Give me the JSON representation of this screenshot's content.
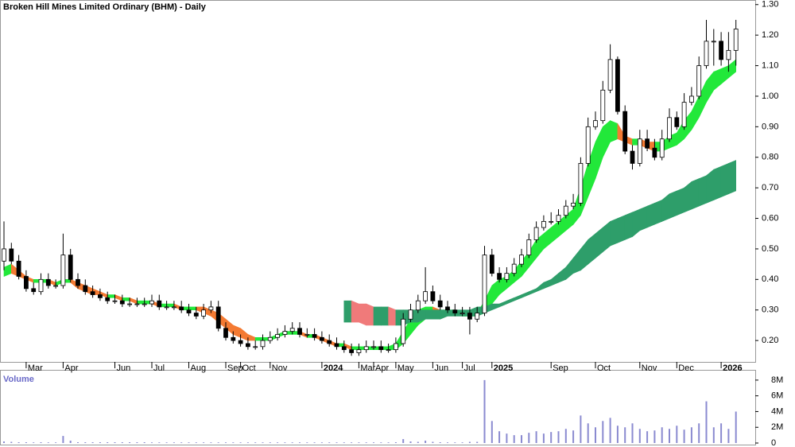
{
  "chart_data": {
    "type": "candlestick",
    "title": "Broken Hill Mines Limited Ordinary (BHM) - Daily",
    "categories": [
      null,
      null,
      null,
      "Mar",
      null,
      null,
      null,
      null,
      "Apr",
      null,
      null,
      null,
      null,
      null,
      null,
      "Jun",
      null,
      null,
      null,
      null,
      "Jul",
      null,
      null,
      null,
      null,
      "Aug",
      null,
      null,
      null,
      null,
      "Sep",
      null,
      "Oct",
      null,
      null,
      null,
      "Nov",
      null,
      null,
      null,
      null,
      null,
      null,
      "2024",
      null,
      null,
      null,
      null,
      "Mar",
      null,
      "Apr",
      null,
      null,
      "May",
      null,
      null,
      null,
      null,
      "Jun",
      null,
      null,
      null,
      "Jul",
      null,
      null,
      null,
      "2025",
      null,
      null,
      null,
      null,
      null,
      null,
      null,
      "Sep",
      null,
      null,
      null,
      null,
      null,
      "Oct",
      null,
      null,
      null,
      null,
      null,
      "Nov",
      null,
      null,
      null,
      null,
      "Dec",
      null,
      null,
      null,
      null,
      null,
      "2026",
      null,
      null
    ],
    "open": [
      0.46,
      0.5,
      0.46,
      0.41,
      0.37,
      0.36,
      0.4,
      0.38,
      0.38,
      0.48,
      0.4,
      0.38,
      0.36,
      0.35,
      0.34,
      0.33,
      0.33,
      0.32,
      0.32,
      0.32,
      0.32,
      0.33,
      0.31,
      0.31,
      0.31,
      0.3,
      0.29,
      0.28,
      0.3,
      0.31,
      0.24,
      0.21,
      0.2,
      0.19,
      0.18,
      0.18,
      0.2,
      0.21,
      0.22,
      0.23,
      0.24,
      0.22,
      0.22,
      0.21,
      0.2,
      0.19,
      0.18,
      0.17,
      0.16,
      0.17,
      0.18,
      0.18,
      0.17,
      0.17,
      0.19,
      0.27,
      0.3,
      0.33,
      0.36,
      0.33,
      0.31,
      0.3,
      0.29,
      0.29,
      0.27,
      0.29,
      0.48,
      0.42,
      0.4,
      0.42,
      0.45,
      0.48,
      0.53,
      0.57,
      0.59,
      0.59,
      0.61,
      0.64,
      0.65,
      0.78,
      0.9,
      0.92,
      1.02,
      1.12,
      0.95,
      0.82,
      0.78,
      0.86,
      0.83,
      0.8,
      0.86,
      0.93,
      0.9,
      0.98,
      1.0,
      1.1,
      1.18,
      1.18,
      1.12,
      1.15
    ],
    "high": [
      0.59,
      0.52,
      0.48,
      0.43,
      0.39,
      0.42,
      0.42,
      0.4,
      0.55,
      0.5,
      0.42,
      0.4,
      0.38,
      0.37,
      0.36,
      0.35,
      0.35,
      0.34,
      0.34,
      0.34,
      0.35,
      0.35,
      0.33,
      0.33,
      0.33,
      0.32,
      0.31,
      0.32,
      0.33,
      0.33,
      0.26,
      0.23,
      0.22,
      0.21,
      0.2,
      0.22,
      0.23,
      0.24,
      0.25,
      0.26,
      0.26,
      0.24,
      0.24,
      0.23,
      0.22,
      0.21,
      0.2,
      0.19,
      0.19,
      0.2,
      0.2,
      0.2,
      0.19,
      0.21,
      0.29,
      0.32,
      0.35,
      0.44,
      0.38,
      0.35,
      0.33,
      0.32,
      0.31,
      0.31,
      0.31,
      0.51,
      0.5,
      0.44,
      0.44,
      0.47,
      0.5,
      0.55,
      0.59,
      0.61,
      0.62,
      0.63,
      0.66,
      0.68,
      0.8,
      0.93,
      0.95,
      1.05,
      1.17,
      1.13,
      0.97,
      0.84,
      0.89,
      0.89,
      0.86,
      0.89,
      0.96,
      0.95,
      1.01,
      1.03,
      1.13,
      1.25,
      1.22,
      1.21,
      1.21,
      1.25
    ],
    "low": [
      0.43,
      0.45,
      0.4,
      0.36,
      0.35,
      0.35,
      0.37,
      0.37,
      0.37,
      0.39,
      0.37,
      0.35,
      0.34,
      0.33,
      0.32,
      0.32,
      0.31,
      0.31,
      0.31,
      0.31,
      0.31,
      0.3,
      0.3,
      0.3,
      0.29,
      0.28,
      0.27,
      0.27,
      0.29,
      0.23,
      0.2,
      0.19,
      0.18,
      0.17,
      0.17,
      0.17,
      0.19,
      0.2,
      0.21,
      0.22,
      0.21,
      0.21,
      0.2,
      0.19,
      0.18,
      0.17,
      0.16,
      0.15,
      0.15,
      0.16,
      0.17,
      0.16,
      0.16,
      0.16,
      0.18,
      0.26,
      0.29,
      0.32,
      0.32,
      0.3,
      0.29,
      0.28,
      0.28,
      0.22,
      0.26,
      0.28,
      0.41,
      0.39,
      0.39,
      0.41,
      0.44,
      0.47,
      0.52,
      0.56,
      0.58,
      0.58,
      0.6,
      0.63,
      0.64,
      0.77,
      0.89,
      0.91,
      1.01,
      0.94,
      0.81,
      0.76,
      0.77,
      0.82,
      0.79,
      0.79,
      0.85,
      0.89,
      0.89,
      0.97,
      0.99,
      1.09,
      1.1,
      1.1,
      1.08,
      1.1
    ],
    "close": [
      0.5,
      0.46,
      0.41,
      0.37,
      0.36,
      0.4,
      0.38,
      0.38,
      0.48,
      0.4,
      0.38,
      0.36,
      0.35,
      0.34,
      0.33,
      0.33,
      0.32,
      0.32,
      0.32,
      0.32,
      0.33,
      0.31,
      0.31,
      0.31,
      0.3,
      0.29,
      0.28,
      0.3,
      0.31,
      0.24,
      0.21,
      0.2,
      0.19,
      0.18,
      0.18,
      0.2,
      0.21,
      0.22,
      0.23,
      0.24,
      0.22,
      0.22,
      0.21,
      0.2,
      0.19,
      0.18,
      0.17,
      0.16,
      0.17,
      0.18,
      0.18,
      0.17,
      0.17,
      0.19,
      0.27,
      0.3,
      0.33,
      0.36,
      0.33,
      0.31,
      0.3,
      0.29,
      0.29,
      0.27,
      0.29,
      0.48,
      0.42,
      0.4,
      0.42,
      0.45,
      0.48,
      0.53,
      0.57,
      0.59,
      0.59,
      0.61,
      0.64,
      0.65,
      0.78,
      0.9,
      0.92,
      1.02,
      1.12,
      0.95,
      0.82,
      0.78,
      0.86,
      0.83,
      0.8,
      0.86,
      0.93,
      0.9,
      0.98,
      1.0,
      1.1,
      1.18,
      1.18,
      1.12,
      1.15,
      1.22
    ],
    "up_color": "#ffffff",
    "down_color": "#000000",
    "ylim": [
      0.13,
      1.315
    ],
    "yticks": [
      {
        "value": 1.3,
        "label": "1.30"
      },
      {
        "value": 1.2,
        "label": "1.20"
      },
      {
        "value": 1.1,
        "label": "1.10"
      },
      {
        "value": 1.0,
        "label": "1.00"
      },
      {
        "value": 0.9,
        "label": "0.90"
      },
      {
        "value": 0.8,
        "label": "0.80"
      },
      {
        "value": 0.7,
        "label": "0.70"
      },
      {
        "value": 0.6,
        "label": "0.60"
      },
      {
        "value": 0.5,
        "label": "0.50"
      },
      {
        "value": 0.4,
        "label": "0.40"
      },
      {
        "value": 0.3,
        "label": "0.30"
      },
      {
        "value": 0.2,
        "label": "0.20"
      }
    ],
    "bands": [
      {
        "up_color": "#22e83a",
        "down_color": "#f47a32",
        "upper": [
          0.44,
          0.45,
          0.43,
          0.41,
          0.4,
          0.4,
          0.4,
          0.39,
          0.4,
          0.4,
          0.39,
          0.38,
          0.37,
          0.36,
          0.35,
          0.35,
          0.34,
          0.34,
          0.33,
          0.33,
          0.33,
          0.32,
          0.32,
          0.32,
          0.31,
          0.31,
          0.31,
          0.31,
          0.3,
          0.29,
          0.27,
          0.25,
          0.24,
          0.22,
          0.21,
          0.21,
          0.21,
          0.22,
          0.23,
          0.23,
          0.23,
          0.22,
          0.22,
          0.21,
          0.2,
          0.19,
          0.19,
          0.18,
          0.18,
          0.18,
          0.18,
          0.18,
          0.18,
          0.19,
          0.23,
          0.27,
          0.3,
          0.31,
          0.31,
          0.3,
          0.3,
          0.3,
          0.29,
          0.29,
          0.29,
          0.33,
          0.38,
          0.4,
          0.41,
          0.43,
          0.46,
          0.49,
          0.53,
          0.55,
          0.57,
          0.59,
          0.61,
          0.63,
          0.7,
          0.78,
          0.85,
          0.9,
          0.92,
          0.91,
          0.87,
          0.86,
          0.86,
          0.85,
          0.85,
          0.85,
          0.87,
          0.88,
          0.92,
          0.95,
          1.0,
          1.05,
          1.08,
          1.09,
          1.1,
          1.12
        ],
        "lower": [
          0.41,
          0.42,
          0.41,
          0.4,
          0.39,
          0.39,
          0.39,
          0.38,
          0.39,
          0.39,
          0.37,
          0.36,
          0.35,
          0.35,
          0.34,
          0.34,
          0.33,
          0.33,
          0.32,
          0.32,
          0.32,
          0.31,
          0.31,
          0.31,
          0.3,
          0.3,
          0.3,
          0.29,
          0.28,
          0.26,
          0.24,
          0.22,
          0.21,
          0.2,
          0.2,
          0.2,
          0.2,
          0.21,
          0.22,
          0.22,
          0.22,
          0.21,
          0.21,
          0.2,
          0.19,
          0.18,
          0.18,
          0.17,
          0.17,
          0.17,
          0.17,
          0.17,
          0.17,
          0.17,
          0.19,
          0.22,
          0.25,
          0.27,
          0.28,
          0.29,
          0.29,
          0.29,
          0.28,
          0.28,
          0.28,
          0.29,
          0.32,
          0.35,
          0.37,
          0.39,
          0.41,
          0.44,
          0.47,
          0.5,
          0.52,
          0.54,
          0.56,
          0.58,
          0.61,
          0.67,
          0.73,
          0.8,
          0.85,
          0.86,
          0.85,
          0.84,
          0.84,
          0.83,
          0.82,
          0.82,
          0.83,
          0.84,
          0.86,
          0.89,
          0.93,
          0.98,
          1.02,
          1.04,
          1.06,
          1.08
        ]
      },
      {
        "up_color": "#2e9e6a",
        "down_color": "#f07a7a",
        "upper": [
          null,
          null,
          null,
          null,
          null,
          null,
          null,
          null,
          null,
          null,
          null,
          null,
          null,
          null,
          null,
          null,
          null,
          null,
          null,
          null,
          null,
          null,
          null,
          null,
          null,
          null,
          null,
          null,
          null,
          null,
          null,
          null,
          null,
          null,
          null,
          null,
          null,
          null,
          null,
          null,
          null,
          null,
          null,
          null,
          null,
          null,
          0.33,
          0.33,
          0.32,
          0.32,
          0.31,
          0.31,
          0.31,
          0.3,
          0.3,
          0.3,
          0.3,
          0.3,
          0.3,
          0.3,
          0.3,
          0.3,
          0.3,
          0.3,
          0.31,
          0.31,
          0.32,
          0.32,
          0.33,
          0.34,
          0.35,
          0.36,
          0.37,
          0.39,
          0.4,
          0.42,
          0.44,
          0.47,
          0.5,
          0.53,
          0.55,
          0.57,
          0.59,
          0.6,
          0.61,
          0.62,
          0.63,
          0.64,
          0.65,
          0.66,
          0.68,
          0.69,
          0.7,
          0.72,
          0.73,
          0.74,
          0.76,
          0.77,
          0.78,
          0.79
        ],
        "lower": [
          null,
          null,
          null,
          null,
          null,
          null,
          null,
          null,
          null,
          null,
          null,
          null,
          null,
          null,
          null,
          null,
          null,
          null,
          null,
          null,
          null,
          null,
          null,
          null,
          null,
          null,
          null,
          null,
          null,
          null,
          null,
          null,
          null,
          null,
          null,
          null,
          null,
          null,
          null,
          null,
          null,
          null,
          null,
          null,
          null,
          null,
          0.26,
          0.26,
          0.26,
          0.25,
          0.25,
          0.25,
          0.25,
          0.25,
          0.25,
          0.26,
          0.26,
          0.27,
          0.27,
          0.27,
          0.28,
          0.28,
          0.28,
          0.28,
          0.28,
          0.29,
          0.3,
          0.31,
          0.32,
          0.33,
          0.34,
          0.35,
          0.36,
          0.37,
          0.38,
          0.39,
          0.4,
          0.42,
          0.43,
          0.45,
          0.47,
          0.49,
          0.51,
          0.52,
          0.53,
          0.54,
          0.56,
          0.57,
          0.58,
          0.59,
          0.6,
          0.61,
          0.62,
          0.63,
          0.64,
          0.65,
          0.66,
          0.67,
          0.68,
          0.69
        ]
      }
    ],
    "volume": {
      "title": "Volume",
      "color": "#8a8ad0",
      "values": [
        200000,
        150000,
        100000,
        100000,
        80000,
        100000,
        80000,
        80000,
        900000,
        300000,
        100000,
        100000,
        100000,
        100000,
        100000,
        100000,
        100000,
        100000,
        100000,
        100000,
        80000,
        80000,
        80000,
        80000,
        80000,
        80000,
        80000,
        80000,
        80000,
        80000,
        80000,
        80000,
        80000,
        80000,
        80000,
        80000,
        80000,
        80000,
        80000,
        80000,
        80000,
        80000,
        80000,
        80000,
        80000,
        80000,
        80000,
        80000,
        80000,
        80000,
        80000,
        80000,
        80000,
        100000,
        500000,
        200000,
        150000,
        300000,
        150000,
        100000,
        80000,
        80000,
        80000,
        150000,
        150000,
        8000000,
        2800000,
        1500000,
        1200000,
        1000000,
        1000000,
        1300000,
        1500000,
        1200000,
        1400000,
        1500000,
        1800000,
        1600000,
        3500000,
        2500000,
        2000000,
        2800000,
        3200000,
        2200000,
        2000000,
        2500000,
        1800000,
        1500000,
        1600000,
        2000000,
        1800000,
        2200000,
        1700000,
        2000000,
        2500000,
        5300000,
        2000000,
        2500000,
        1800000,
        4000000
      ],
      "ylim": [
        0,
        9000000
      ],
      "yticks": [
        {
          "value": 8000000,
          "label": "8M"
        },
        {
          "value": 6000000,
          "label": "6M"
        },
        {
          "value": 4000000,
          "label": "4M"
        },
        {
          "value": 2000000,
          "label": "2M"
        },
        0
      ]
    }
  }
}
